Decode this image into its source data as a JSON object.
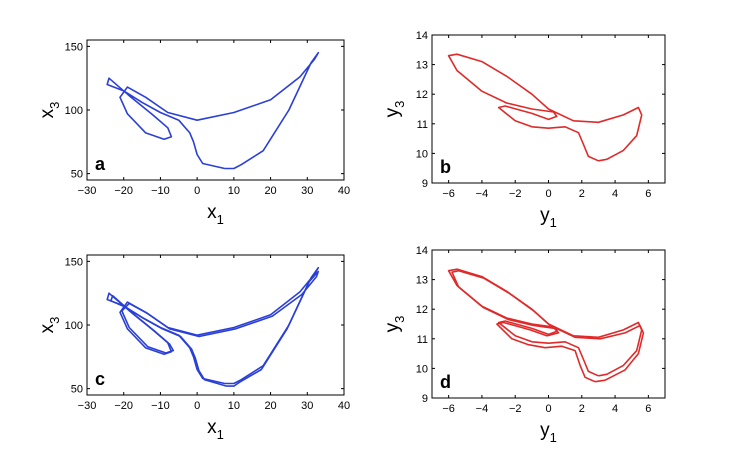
{
  "chart_data": [
    {
      "type": "line",
      "panel_label": "a",
      "xlabel": {
        "base": "x",
        "sub": "1"
      },
      "ylabel": {
        "base": "x",
        "sub": "3"
      },
      "xlim": [
        -30,
        40
      ],
      "ylim": [
        45,
        155
      ],
      "xticks": [
        -30,
        -20,
        -10,
        0,
        10,
        20,
        30,
        40
      ],
      "yticks": [
        50,
        100,
        150
      ],
      "grid": false,
      "series": [
        {
          "color": "#2a3fd8",
          "x": [
            7.5,
            1.5,
            0,
            -1,
            -2,
            -5,
            -10,
            -15,
            -20,
            -24.5,
            -24,
            -18,
            -12,
            -8,
            -7,
            -9,
            -14,
            -19,
            -21,
            -19,
            -14,
            -8,
            0,
            10,
            20,
            28,
            32,
            33,
            31,
            25,
            18,
            12,
            10
          ],
          "y": [
            54,
            58,
            65,
            75,
            82,
            92,
            98,
            106,
            115,
            120,
            125,
            110,
            96,
            86,
            79,
            77,
            82,
            97,
            110,
            118,
            110,
            98,
            92,
            98,
            108,
            126,
            140,
            145,
            137,
            100,
            68,
            57,
            54
          ]
        }
      ]
    },
    {
      "type": "line",
      "panel_label": "b",
      "xlabel": {
        "base": "y",
        "sub": "1"
      },
      "ylabel": {
        "base": "y",
        "sub": "3"
      },
      "xlim": [
        -7,
        7
      ],
      "ylim": [
        9,
        14
      ],
      "xticks": [
        -6,
        -4,
        -2,
        0,
        2,
        4,
        6
      ],
      "yticks": [
        9,
        10,
        11,
        12,
        13,
        14
      ],
      "grid": false,
      "series": [
        {
          "color": "#e02a2a",
          "x": [
            3,
            2.4,
            2.1,
            1.8,
            1,
            0,
            -1,
            -2,
            -3,
            -2.6,
            -1,
            0,
            0.5,
            0.3,
            -1,
            -2.5,
            -4,
            -5.5,
            -6,
            -5.5,
            -4,
            -2.5,
            -1,
            0,
            1.5,
            3,
            4.5,
            5.4,
            5.6,
            5.3,
            4.5,
            3.5
          ],
          "y": [
            9.75,
            9.9,
            10.3,
            10.7,
            10.9,
            10.85,
            10.9,
            11.1,
            11.55,
            11.6,
            11.35,
            11.15,
            11.25,
            11.4,
            11.5,
            11.7,
            12.1,
            12.8,
            13.3,
            13.35,
            13.1,
            12.6,
            12.0,
            11.5,
            11.1,
            11.05,
            11.3,
            11.55,
            11.3,
            10.6,
            10.1,
            9.8
          ]
        }
      ]
    },
    {
      "type": "line",
      "panel_label": "c",
      "xlabel": {
        "base": "x",
        "sub": "1"
      },
      "ylabel": {
        "base": "x",
        "sub": "3"
      },
      "xlim": [
        -30,
        40
      ],
      "ylim": [
        45,
        155
      ],
      "xticks": [
        -30,
        -20,
        -10,
        0,
        10,
        20,
        30,
        40
      ],
      "yticks": [
        50,
        100,
        150
      ],
      "grid": false,
      "series": [
        {
          "color": "#2a3fd8",
          "x": [
            7.5,
            1.5,
            0,
            -1,
            -2,
            -5,
            -10,
            -15,
            -20,
            -24.5,
            -24,
            -18,
            -12,
            -8,
            -7,
            -9,
            -14,
            -19,
            -21,
            -19,
            -14,
            -8,
            0,
            10,
            20,
            28,
            32,
            33,
            31,
            25,
            18,
            12,
            10
          ],
          "y": [
            54,
            58,
            65,
            75,
            82,
            92,
            98,
            106,
            115,
            120,
            125,
            110,
            96,
            86,
            79,
            77,
            82,
            97,
            110,
            118,
            110,
            98,
            92,
            98,
            108,
            126,
            140,
            145,
            137,
            100,
            68,
            57,
            54
          ]
        },
        {
          "color": "#2a3fd8",
          "x": [
            8,
            2,
            0.5,
            -0.5,
            -1.5,
            -4.5,
            -9.5,
            -14.5,
            -19.5,
            -23.5,
            -23,
            -17.5,
            -11.5,
            -7.5,
            -6.5,
            -8.5,
            -13.5,
            -18.5,
            -20.5,
            -18.5,
            -13.5,
            -7.5,
            0.5,
            10.5,
            20.5,
            28.5,
            32.5,
            33,
            30.5,
            24.5,
            17.5,
            11.5,
            10
          ],
          "y": [
            52,
            57,
            64,
            74,
            81,
            91,
            97,
            105,
            114,
            119,
            123,
            109,
            95,
            85,
            80,
            78,
            83,
            98,
            111,
            117,
            109,
            97,
            91,
            97,
            107,
            124,
            138,
            142,
            134,
            97,
            65,
            55,
            52
          ]
        }
      ]
    },
    {
      "type": "line",
      "panel_label": "d",
      "xlabel": {
        "base": "y",
        "sub": "1"
      },
      "ylabel": {
        "base": "y",
        "sub": "3"
      },
      "xlim": [
        -7,
        7
      ],
      "ylim": [
        9,
        14
      ],
      "xticks": [
        -6,
        -4,
        -2,
        0,
        2,
        4,
        6
      ],
      "yticks": [
        9,
        10,
        11,
        12,
        13,
        14
      ],
      "grid": false,
      "series": [
        {
          "color": "#e02a2a",
          "x": [
            3,
            2.4,
            2.1,
            1.8,
            1,
            0,
            -1,
            -2,
            -3,
            -2.6,
            -1,
            0,
            0.5,
            0.3,
            -1,
            -2.5,
            -4,
            -5.5,
            -6,
            -5.5,
            -4,
            -2.5,
            -1,
            0,
            1.5,
            3,
            4.5,
            5.4,
            5.6,
            5.3,
            4.5,
            3.5
          ],
          "y": [
            9.75,
            9.9,
            10.3,
            10.7,
            10.9,
            10.85,
            10.9,
            11.1,
            11.55,
            11.6,
            11.35,
            11.15,
            11.25,
            11.4,
            11.5,
            11.7,
            12.1,
            12.8,
            13.3,
            13.35,
            13.1,
            12.6,
            12.0,
            11.5,
            11.1,
            11.05,
            11.3,
            11.55,
            11.3,
            10.6,
            10.1,
            9.8
          ]
        },
        {
          "color": "#e02a2a",
          "x": [
            2.8,
            2.2,
            1.9,
            1.6,
            0.8,
            -0.2,
            -1.2,
            -2.2,
            -3.1,
            -2.7,
            -1.1,
            -0.1,
            0.6,
            0.4,
            -0.9,
            -2.4,
            -3.9,
            -5.4,
            -5.8,
            -5.4,
            -3.9,
            -2.4,
            -0.9,
            0.1,
            1.6,
            3.1,
            4.6,
            5.5,
            5.7,
            5.4,
            4.6,
            3.4
          ],
          "y": [
            9.55,
            9.7,
            10.1,
            10.6,
            10.75,
            10.7,
            10.8,
            11.0,
            11.5,
            11.55,
            11.3,
            11.1,
            11.2,
            11.35,
            11.45,
            11.65,
            12.05,
            12.75,
            13.25,
            13.3,
            13.05,
            12.55,
            11.95,
            11.45,
            11.05,
            11.0,
            11.2,
            11.45,
            11.2,
            10.5,
            9.95,
            9.6
          ]
        }
      ]
    }
  ]
}
